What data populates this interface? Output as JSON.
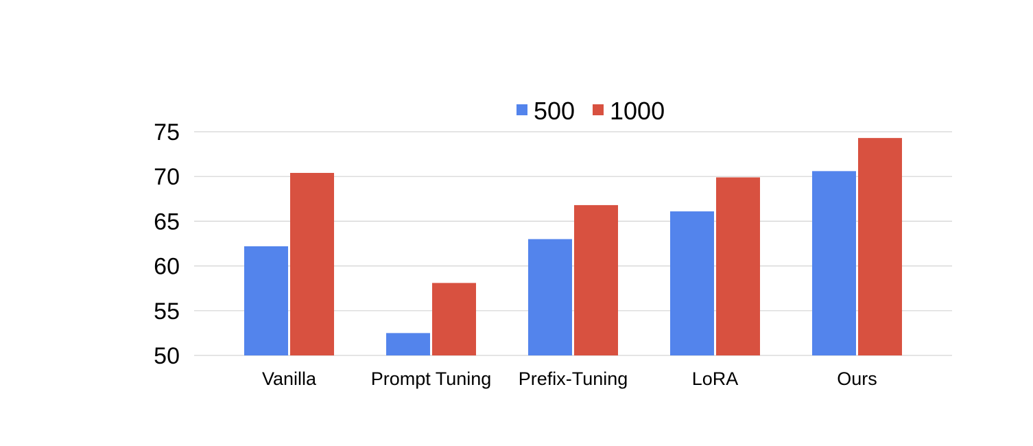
{
  "chart_data": {
    "type": "bar",
    "categories": [
      "Vanilla",
      "Prompt Tuning",
      "Prefix-Tuning",
      "LoRA",
      "Ours"
    ],
    "series": [
      {
        "name": "500",
        "values": [
          62.2,
          52.5,
          63.0,
          66.1,
          70.6
        ],
        "color": "#5384ec"
      },
      {
        "name": "1000",
        "values": [
          70.4,
          58.1,
          66.8,
          69.9,
          74.3
        ],
        "color": "#d85140"
      }
    ],
    "yticks": [
      50,
      55,
      60,
      65,
      70,
      75
    ],
    "ylim": [
      50,
      75
    ],
    "grid": true,
    "legend_position": "top-center"
  }
}
